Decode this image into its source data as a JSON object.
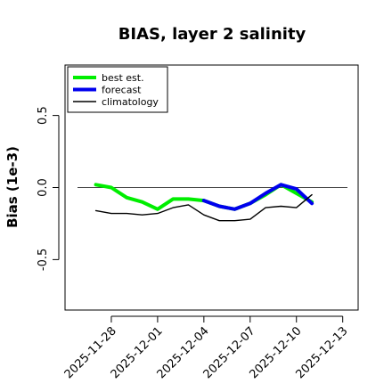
{
  "chart_data": {
    "type": "line",
    "title": "BIAS, layer 2 salinity",
    "ylabel": "Bias (1e-3)",
    "xlabel": "",
    "xlim": [
      "2025-11-25",
      "2025-12-14"
    ],
    "ylim": [
      -0.85,
      0.85
    ],
    "yticks": [
      -0.5,
      0.0,
      0.5
    ],
    "ytick_labels": [
      "-0.5",
      "0.0",
      "0.5"
    ],
    "xticks": [
      "2025-11-28",
      "2025-12-01",
      "2025-12-04",
      "2025-12-07",
      "2025-12-10",
      "2025-12-13"
    ],
    "xtick_colors": [
      "#000000",
      "#000000",
      "#228b22",
      "#000000",
      "#000000",
      "#000000"
    ],
    "reference_line": 0.0,
    "legend_position": "top-left",
    "series": [
      {
        "name": "best est.",
        "color": "#00ee00",
        "style": "thick",
        "x": [
          "2025-11-27",
          "2025-11-28",
          "2025-11-29",
          "2025-11-30",
          "2025-12-01",
          "2025-12-02",
          "2025-12-03",
          "2025-12-04",
          "2025-12-05",
          "2025-12-06",
          "2025-12-07",
          "2025-12-08",
          "2025-12-09",
          "2025-12-10",
          "2025-12-11"
        ],
        "values": [
          0.02,
          0.0,
          -0.07,
          -0.1,
          -0.15,
          -0.08,
          -0.08,
          -0.09,
          -0.13,
          -0.15,
          -0.11,
          -0.05,
          0.02,
          -0.04,
          -0.1
        ]
      },
      {
        "name": "forecast",
        "color": "#0000ee",
        "style": "thick",
        "x": [
          "2025-12-04",
          "2025-12-05",
          "2025-12-06",
          "2025-12-07",
          "2025-12-08",
          "2025-12-09",
          "2025-12-10",
          "2025-12-11"
        ],
        "values": [
          -0.09,
          -0.13,
          -0.15,
          -0.11,
          -0.04,
          0.02,
          -0.01,
          -0.11
        ]
      },
      {
        "name": "climatology",
        "color": "#000000",
        "style": "thin",
        "x": [
          "2025-11-27",
          "2025-11-28",
          "2025-11-29",
          "2025-11-30",
          "2025-12-01",
          "2025-12-02",
          "2025-12-03",
          "2025-12-04",
          "2025-12-05",
          "2025-12-06",
          "2025-12-07",
          "2025-12-08",
          "2025-12-09",
          "2025-12-10",
          "2025-12-11"
        ],
        "values": [
          -0.16,
          -0.18,
          -0.18,
          -0.19,
          -0.18,
          -0.14,
          -0.12,
          -0.19,
          -0.23,
          -0.23,
          -0.22,
          -0.14,
          -0.13,
          -0.14,
          -0.05
        ]
      }
    ]
  }
}
